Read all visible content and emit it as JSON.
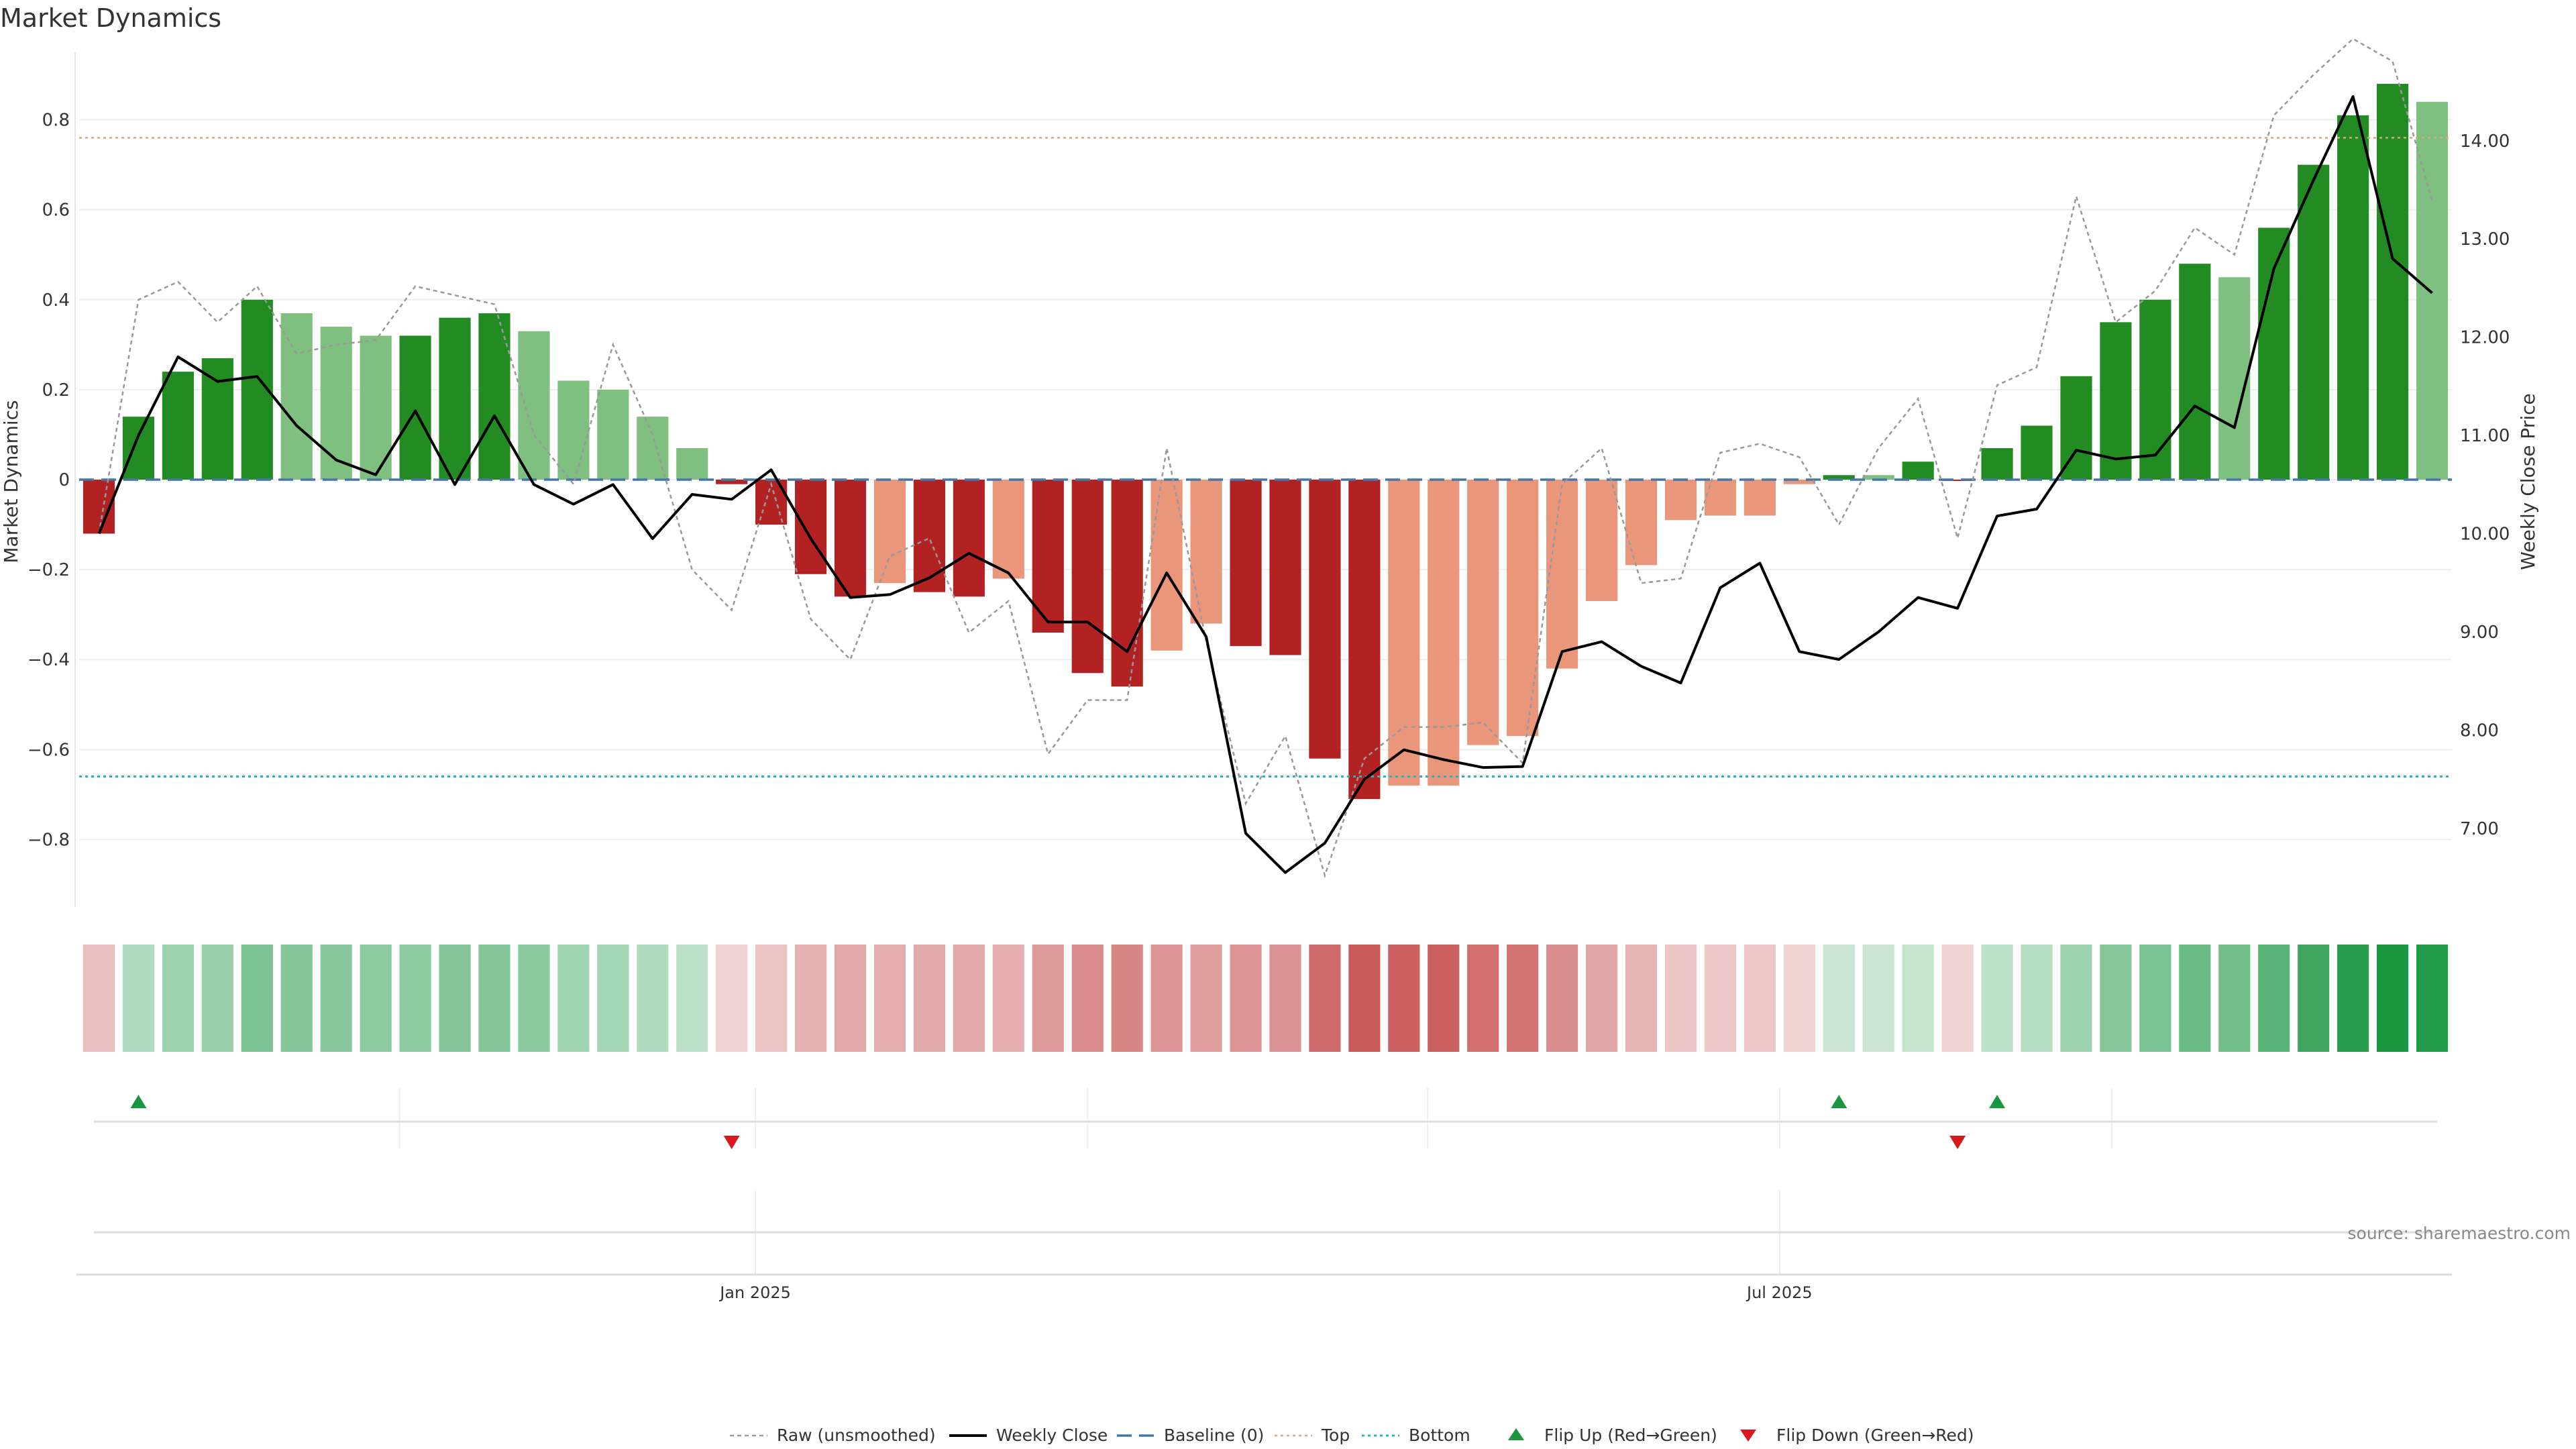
{
  "title": "Market Dynamics",
  "source": "source: sharemaestro.com",
  "colors": {
    "green": "#228b22",
    "green_light": "#7fbf7f",
    "red": "#b22222",
    "red_light": "#e9967a",
    "weekly_close": "#000000",
    "raw": "#999999",
    "baseline": "#4477aa",
    "top": "#d9a87c",
    "bottom": "#27b5c4",
    "flip_up": "#1a9641",
    "flip_down": "#d7191c"
  },
  "legend": [
    {
      "label": "Raw (unsmoothed)",
      "kind": "raw"
    },
    {
      "label": "Weekly Close",
      "kind": "close"
    },
    {
      "label": "Baseline (0)",
      "kind": "baseline"
    },
    {
      "label": "Top",
      "kind": "top"
    },
    {
      "label": "Bottom",
      "kind": "bottom"
    },
    {
      "label": "Flip Up (Red→Green)",
      "kind": "flip_up"
    },
    {
      "label": "Flip Down (Green→Red)",
      "kind": "flip_down"
    }
  ],
  "chart_data": {
    "type": "bar",
    "title": "Market Dynamics",
    "ylabel": "Market Dynamics",
    "y2label": "Weekly Close Price",
    "ylim": [
      -0.95,
      0.95
    ],
    "y2lim": [
      6.2,
      14.9
    ],
    "yticks": [
      "0.8",
      "0.6",
      "0.4",
      "0.2",
      "0",
      "−0.2",
      "−0.4",
      "−0.6",
      "−0.8"
    ],
    "ytick_values": [
      0.8,
      0.6,
      0.4,
      0.2,
      0,
      -0.2,
      -0.4,
      -0.6,
      -0.8
    ],
    "y2ticks": [
      "14.00",
      "13.00",
      "12.00",
      "11.00",
      "10.00",
      "9.00",
      "8.00",
      "7.00"
    ],
    "y2tick_values": [
      14,
      13,
      12,
      11,
      10,
      9,
      8,
      7
    ],
    "xticks": [
      {
        "label": "Jan 2025",
        "index": 16.6
      },
      {
        "label": "Jul 2025",
        "index": 42.5
      }
    ],
    "top_level": 0.76,
    "bottom_level": -0.66,
    "baseline": 0,
    "bars": [
      -0.12,
      0.14,
      0.24,
      0.27,
      0.4,
      0.37,
      0.34,
      0.32,
      0.32,
      0.36,
      0.37,
      0.33,
      0.22,
      0.2,
      0.14,
      0.07,
      -0.01,
      -0.1,
      -0.21,
      -0.26,
      -0.23,
      -0.25,
      -0.26,
      -0.22,
      -0.34,
      -0.43,
      -0.46,
      -0.38,
      -0.32,
      -0.37,
      -0.39,
      -0.62,
      -0.71,
      -0.68,
      -0.68,
      -0.59,
      -0.57,
      -0.42,
      -0.27,
      -0.19,
      -0.09,
      -0.08,
      -0.08,
      -0.01,
      0.01,
      0.01,
      0.04,
      -0.003,
      0.07,
      0.12,
      0.23,
      0.35,
      0.4,
      0.48,
      0.45,
      0.56,
      0.7,
      0.81,
      0.88,
      0.84
    ],
    "bar_shade": [
      "dark",
      "dark",
      "dark",
      "dark",
      "dark",
      "light",
      "light",
      "light",
      "dark",
      "dark",
      "dark",
      "light",
      "light",
      "light",
      "light",
      "light",
      "dark",
      "dark",
      "dark",
      "dark",
      "light",
      "dark",
      "dark",
      "light",
      "dark",
      "dark",
      "dark",
      "light",
      "light",
      "dark",
      "dark",
      "dark",
      "dark",
      "light",
      "light",
      "light",
      "light",
      "light",
      "light",
      "light",
      "light",
      "light",
      "light",
      "light",
      "dark",
      "light",
      "dark",
      "dark",
      "dark",
      "dark",
      "dark",
      "dark",
      "dark",
      "dark",
      "light",
      "dark",
      "dark",
      "dark",
      "dark",
      "light"
    ],
    "raw": [
      -0.12,
      0.4,
      0.44,
      0.35,
      0.43,
      0.28,
      0.3,
      0.31,
      0.43,
      0.41,
      0.39,
      0.1,
      -0.01,
      0.3,
      0.1,
      -0.2,
      -0.29,
      -0.01,
      -0.31,
      -0.4,
      -0.17,
      -0.13,
      -0.34,
      -0.27,
      -0.61,
      -0.49,
      -0.49,
      0.07,
      -0.36,
      -0.72,
      -0.57,
      -0.88,
      -0.62,
      -0.55,
      -0.55,
      -0.54,
      -0.63,
      -0.01,
      0.07,
      -0.23,
      -0.22,
      0.06,
      0.08,
      0.05,
      -0.1,
      0.07,
      0.18,
      -0.13,
      0.21,
      0.25,
      0.63,
      0.35,
      0.42,
      0.56,
      0.5,
      0.81,
      0.9,
      0.98,
      0.93,
      0.62
    ],
    "close": [
      10.0,
      11.0,
      11.8,
      11.55,
      11.6,
      11.1,
      10.75,
      10.6,
      11.25,
      10.5,
      11.2,
      10.5,
      10.3,
      10.5,
      9.95,
      10.4,
      10.35,
      10.65,
      9.95,
      9.35,
      9.38,
      9.55,
      9.8,
      9.6,
      9.1,
      9.1,
      8.8,
      9.6,
      8.95,
      6.95,
      6.55,
      6.85,
      7.5,
      7.8,
      7.7,
      7.62,
      7.63,
      8.8,
      8.9,
      8.65,
      8.48,
      9.45,
      9.7,
      8.8,
      8.72,
      9.0,
      9.35,
      9.24,
      10.18,
      10.25,
      10.85,
      10.76,
      10.8,
      11.3,
      11.08,
      12.7,
      13.6,
      14.45,
      12.8,
      12.45
    ],
    "heat": [
      -0.12,
      0.14,
      0.24,
      0.27,
      0.4,
      0.37,
      0.34,
      0.32,
      0.32,
      0.36,
      0.37,
      0.33,
      0.22,
      0.2,
      0.14,
      0.07,
      -0.01,
      -0.1,
      -0.21,
      -0.26,
      -0.23,
      -0.25,
      -0.26,
      -0.22,
      -0.34,
      -0.43,
      -0.46,
      -0.38,
      -0.32,
      -0.37,
      -0.39,
      -0.62,
      -0.71,
      -0.68,
      -0.68,
      -0.59,
      -0.57,
      -0.42,
      -0.27,
      -0.19,
      -0.09,
      -0.08,
      -0.08,
      -0.01,
      0.01,
      0.01,
      0.04,
      -0.003,
      0.07,
      0.12,
      0.23,
      0.35,
      0.4,
      0.48,
      0.45,
      0.56,
      0.7,
      0.81,
      0.88,
      0.84
    ],
    "flip_up_indices": [
      1,
      44,
      48
    ],
    "flip_down_indices": [
      16,
      47
    ]
  }
}
